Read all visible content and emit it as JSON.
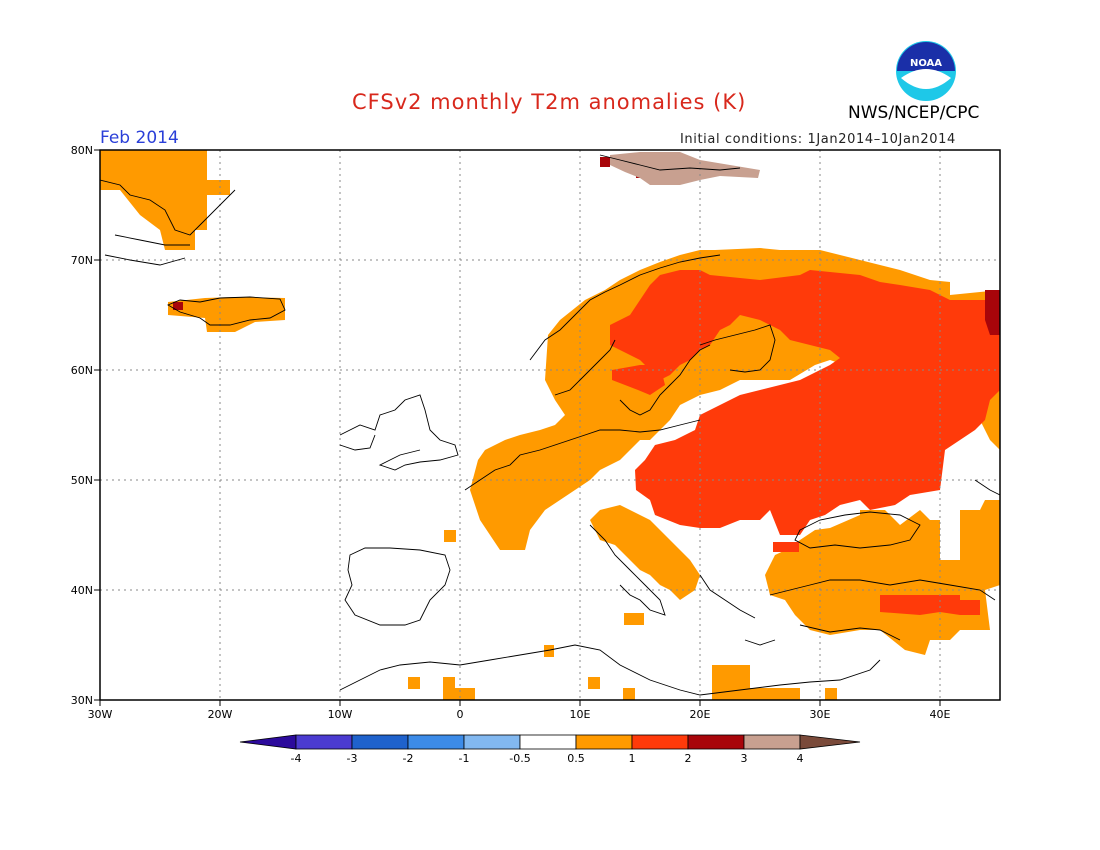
{
  "header": {
    "title": "CFSv2 monthly T2m anomalies (K)",
    "agency": "NWS/NCEP/CPC",
    "logo_text": "NOAA",
    "month": "Feb 2014",
    "initial_conditions": "Initial conditions: 1Jan2014–10Jan2014"
  },
  "map": {
    "projection": "cylindrical equidistant",
    "lon_range": [
      -30,
      45
    ],
    "lat_range": [
      30,
      80
    ],
    "x_ticks": [
      "30W",
      "20W",
      "10W",
      "0",
      "10E",
      "20E",
      "30E",
      "40E"
    ],
    "y_ticks": [
      "30N",
      "40N",
      "50N",
      "60N",
      "70N",
      "80N"
    ],
    "grid": "dotted, every 10 degrees",
    "land_outlines": "black coastlines and country borders",
    "anomaly_regions": [
      {
        "name": "Greenland east coast",
        "category": "0.5 to 1"
      },
      {
        "name": "Iceland",
        "category": "0.5 to 1"
      },
      {
        "name": "Iceland west tip",
        "category": "2 to 3"
      },
      {
        "name": "Svalbard",
        "category": "3 to 4"
      },
      {
        "name": "Svalbard west",
        "category": "2 to 3"
      },
      {
        "name": "Scandinavia and Western/Central Europe",
        "category": "0.5 to 1"
      },
      {
        "name": "Northern Scandinavia, Eastern Europe and Western Russia",
        "category": "1 to 2"
      },
      {
        "name": "Southern Sweden",
        "category": "1 to 2"
      },
      {
        "name": "Northern Urals edge",
        "category": "2 to 3"
      },
      {
        "name": "Turkey and Caucasus",
        "category": "0.5 to 1"
      },
      {
        "name": "Eastern Turkey",
        "category": "1 to 2"
      },
      {
        "name": "North Africa patches",
        "category": "0.5 to 1"
      },
      {
        "name": "Egypt / Levant",
        "category": "0.5 to 1"
      }
    ]
  },
  "legend": {
    "labels": [
      "-4",
      "-3",
      "-2",
      "-1",
      "-0.5",
      "0.5",
      "1",
      "2",
      "3",
      "4"
    ],
    "colors": [
      "#2c0a9c",
      "#4b3bd0",
      "#1f62cc",
      "#3c8be8",
      "#82b8f0",
      "#ffffff",
      "#ff9a00",
      "#ff3a0a",
      "#a8050a",
      "#c8a090",
      "#7a4a3a"
    ]
  }
}
